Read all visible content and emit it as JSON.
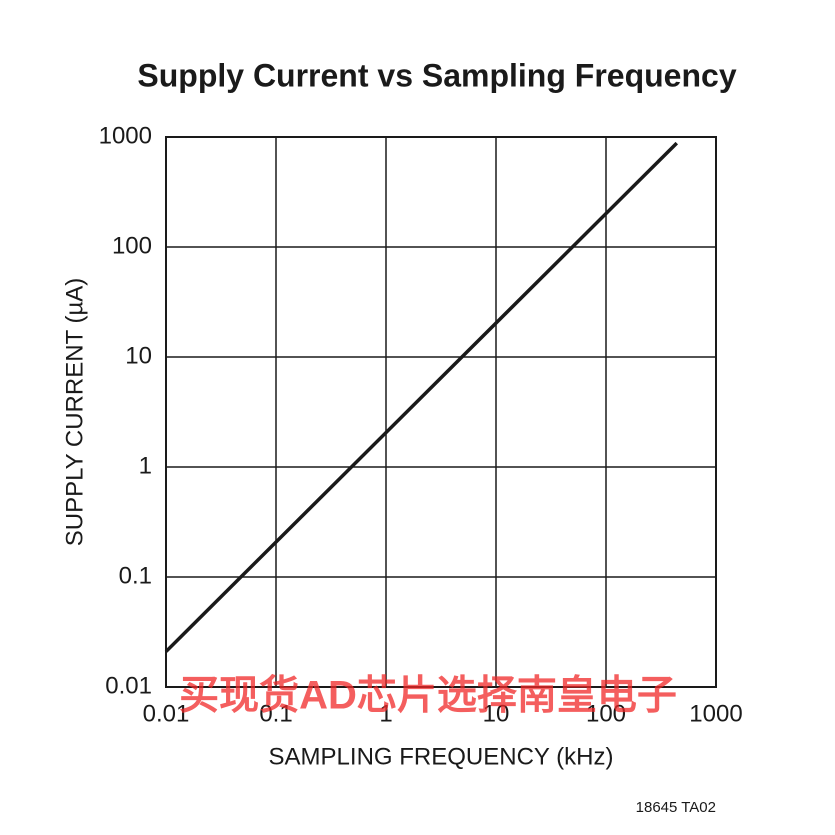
{
  "chart_data": {
    "type": "line",
    "title": "Supply Current vs Sampling Frequency",
    "xlabel": "SAMPLING FREQUENCY (kHz)",
    "ylabel": "SUPPLY CURRENT (µA)",
    "note": "18645 TA02",
    "watermark": "买现货AD芯片选择南皇电子",
    "x": [
      0.01,
      440
    ],
    "series": [
      {
        "name": "Supply Current",
        "color": "#1a1a1a",
        "values": [
          0.021,
          880
        ]
      }
    ],
    "xscale": "log",
    "yscale": "log",
    "xlim": [
      0.01,
      1000
    ],
    "ylim": [
      0.01,
      1000
    ],
    "xticks": [
      0.01,
      0.1,
      1,
      10,
      100,
      1000
    ],
    "yticks": [
      0.01,
      0.1,
      1,
      10,
      100,
      1000
    ],
    "grid": true
  }
}
